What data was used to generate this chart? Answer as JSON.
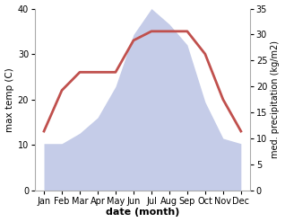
{
  "months": [
    "Jan",
    "Feb",
    "Mar",
    "Apr",
    "May",
    "Jun",
    "Jul",
    "Aug",
    "Sep",
    "Oct",
    "Nov",
    "Dec"
  ],
  "x": [
    1,
    2,
    3,
    4,
    5,
    6,
    7,
    8,
    9,
    10,
    11,
    12
  ],
  "temperature": [
    13,
    22,
    26,
    26,
    26,
    33,
    35,
    35,
    35,
    30,
    20,
    13
  ],
  "precipitation": [
    9,
    9,
    11,
    14,
    20,
    30,
    35,
    32,
    28,
    17,
    10,
    9
  ],
  "temp_color": "#c0504d",
  "precip_color": "#c5cce8",
  "temp_ylim": [
    0,
    40
  ],
  "precip_ylim": [
    0,
    35
  ],
  "temp_yticks": [
    0,
    10,
    20,
    30,
    40
  ],
  "precip_yticks": [
    0,
    5,
    10,
    15,
    20,
    25,
    30,
    35
  ],
  "ylabel_left": "max temp (C)",
  "ylabel_right": "med. precipitation (kg/m2)",
  "xlabel": "date (month)",
  "background_color": "#ffffff",
  "line_width": 2.0
}
